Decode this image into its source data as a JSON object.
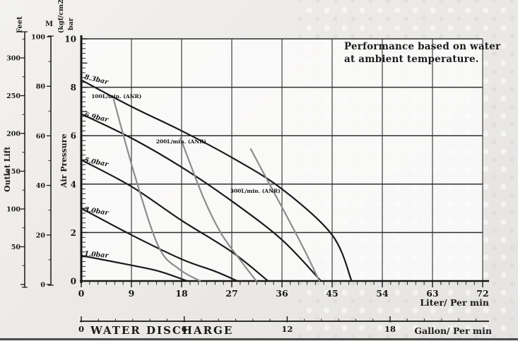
{
  "ui": {
    "annotation_line1": "Performance based on water",
    "annotation_line2": "at ambient temperature.",
    "water_discharge_title": "WATER DISCHARGE"
  },
  "chart_data": {
    "type": "line",
    "annotation": "Performance based on water at ambient temperature.",
    "x_axis": {
      "label": "Liter/ Per min",
      "ticks": [
        0,
        9,
        18,
        27,
        36,
        45,
        54,
        63,
        72
      ],
      "range": [
        0,
        72
      ],
      "minor_step": 1.5,
      "grid": true
    },
    "x_axis_secondary": {
      "label": "Gallon/ Per min",
      "title": "WATER DISCHARGE",
      "ticks": [
        0,
        6,
        12,
        18
      ],
      "minor_step": 1
    },
    "y_axis": {
      "label": "Air Pressure",
      "unit_top": "(kgf/cm2)",
      "unit_bottom": "bar",
      "ticks": [
        0,
        2,
        4,
        6,
        8,
        10
      ],
      "range": [
        0,
        10
      ],
      "minor_step": 0.2,
      "grid": true
    },
    "y_axis_secondary": {
      "label": "M",
      "ticks": [
        0,
        20,
        40,
        60,
        80,
        100
      ],
      "range": [
        0,
        100
      ]
    },
    "y_axis_tertiary": {
      "label": "Feet",
      "title": "Outlet Lift",
      "ticks": [
        50,
        100,
        150,
        200,
        250,
        300
      ],
      "range": [
        0,
        325
      ]
    },
    "colors": {
      "performance_curve": "#1b1b1b",
      "air_curve": "#8c8c8c",
      "grid": "#2f2f2f"
    },
    "series": [
      {
        "name": "8.3bar",
        "kind": "performance",
        "points": [
          [
            0,
            8.3
          ],
          [
            9,
            7.2
          ],
          [
            18,
            6.2
          ],
          [
            27,
            5.1
          ],
          [
            36,
            3.8
          ],
          [
            45,
            1.9
          ],
          [
            48.5,
            0
          ]
        ],
        "label_anchor": [
          0.5,
          8.35
        ],
        "label_rot": 13
      },
      {
        "name": "6.9bar",
        "kind": "performance",
        "points": [
          [
            0,
            6.9
          ],
          [
            9,
            5.9
          ],
          [
            18,
            4.7
          ],
          [
            27,
            3.3
          ],
          [
            36,
            1.7
          ],
          [
            43,
            0
          ]
        ],
        "label_anchor": [
          0.5,
          6.78
        ],
        "label_rot": 12
      },
      {
        "name": "5.0bar",
        "kind": "performance",
        "points": [
          [
            0,
            5.0
          ],
          [
            9,
            3.9
          ],
          [
            18,
            2.5
          ],
          [
            27,
            1.2
          ],
          [
            33.5,
            0
          ]
        ],
        "label_anchor": [
          0.5,
          4.92
        ],
        "label_rot": 11
      },
      {
        "name": "3.0bar",
        "kind": "performance",
        "points": [
          [
            0,
            3.0
          ],
          [
            9,
            1.9
          ],
          [
            18,
            0.9
          ],
          [
            24,
            0.4
          ],
          [
            28,
            0
          ]
        ],
        "label_anchor": [
          0.5,
          2.88
        ],
        "label_rot": 9
      },
      {
        "name": "1.0bar",
        "kind": "performance",
        "points": [
          [
            0,
            1.05
          ],
          [
            9,
            0.65
          ],
          [
            14,
            0.4
          ],
          [
            19,
            0
          ]
        ],
        "label_anchor": [
          0.5,
          1.05
        ],
        "label_rot": 5
      },
      {
        "name": "100L/min. (ANR)",
        "kind": "air",
        "points": [
          [
            5.8,
            7.5
          ],
          [
            9.8,
            4.2
          ],
          [
            13.9,
            1.4
          ],
          [
            17.5,
            0.5
          ],
          [
            21.3,
            0
          ]
        ],
        "label_anchor": [
          1.8,
          7.55
        ],
        "label_rot": 0
      },
      {
        "name": "200L/min. (ANR)",
        "kind": "air",
        "points": [
          [
            17.8,
            5.9
          ],
          [
            21.9,
            3.45
          ],
          [
            25,
            2.0
          ],
          [
            28.4,
            0.9
          ],
          [
            31.4,
            0
          ]
        ],
        "label_anchor": [
          13.4,
          5.69
        ],
        "label_rot": 0
      },
      {
        "name": "300L/min. (ANR)",
        "kind": "air",
        "points": [
          [
            30.4,
            5.45
          ],
          [
            34,
            3.9
          ],
          [
            37.5,
            2.4
          ],
          [
            40.2,
            1.2
          ],
          [
            42.7,
            0
          ]
        ],
        "label_anchor": [
          26.7,
          3.64
        ],
        "label_rot": 0
      }
    ]
  }
}
